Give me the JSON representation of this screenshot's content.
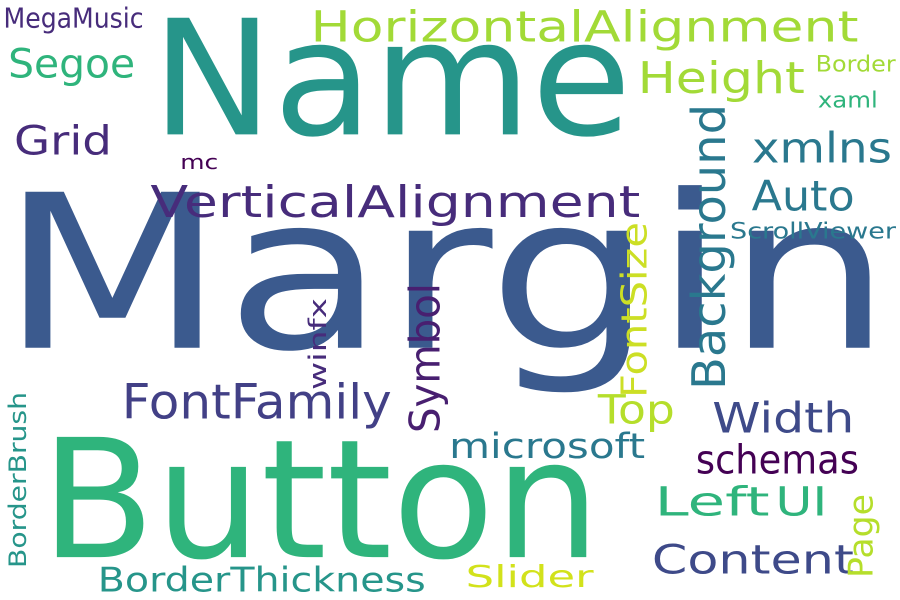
{
  "words": [
    {
      "text": "Margin",
      "color": "#3b5a8e",
      "rotate": false
    },
    {
      "text": "Name",
      "color": "#26958a",
      "rotate": false
    },
    {
      "text": "Button",
      "color": "#2fb47c",
      "rotate": false
    },
    {
      "text": "HorizontalAlignment",
      "color": "#a2da37",
      "rotate": false
    },
    {
      "text": "VerticalAlignment",
      "color": "#472c7b",
      "rotate": false
    },
    {
      "text": "FontFamily",
      "color": "#424086",
      "rotate": false
    },
    {
      "text": "Height",
      "color": "#a2da37",
      "rotate": false
    },
    {
      "text": "Background",
      "color": "#2a788e",
      "rotate": true
    },
    {
      "text": "Segoe",
      "color": "#2fb47c",
      "rotate": false
    },
    {
      "text": "Grid",
      "color": "#472c7b",
      "rotate": false
    },
    {
      "text": "xmlns",
      "color": "#2a788e",
      "rotate": false
    },
    {
      "text": "Auto",
      "color": "#2a788e",
      "rotate": false
    },
    {
      "text": "Symbol",
      "color": "#481f70",
      "rotate": true
    },
    {
      "text": "FontSize",
      "color": "#ccdf25",
      "rotate": true
    },
    {
      "text": "Top",
      "color": "#b5de2b",
      "rotate": false
    },
    {
      "text": "Width",
      "color": "#3e4a89",
      "rotate": false
    },
    {
      "text": "schemas",
      "color": "#440154",
      "rotate": false
    },
    {
      "text": "microsoft",
      "color": "#2a788e",
      "rotate": false
    },
    {
      "text": "Left",
      "color": "#2fb47c",
      "rotate": false
    },
    {
      "text": "UI",
      "color": "#2fb47c",
      "rotate": false
    },
    {
      "text": "Content",
      "color": "#3e4a89",
      "rotate": false
    },
    {
      "text": "BorderThickness",
      "color": "#26958a",
      "rotate": false
    },
    {
      "text": "Slider",
      "color": "#d2e21b",
      "rotate": false
    },
    {
      "text": "Page",
      "color": "#b5de2b",
      "rotate": true
    },
    {
      "text": "BorderBrush",
      "color": "#26958a",
      "rotate": true
    },
    {
      "text": "winfx",
      "color": "#472c7b",
      "rotate": true
    },
    {
      "text": "MegaMusic",
      "color": "#472c7b",
      "rotate": false
    },
    {
      "text": "mc",
      "color": "#440154",
      "rotate": false
    },
    {
      "text": "Border",
      "color": "#a2da37",
      "rotate": false
    },
    {
      "text": "xaml",
      "color": "#2fb47c",
      "rotate": false
    },
    {
      "text": "ScrollViewer",
      "color": "#2a788e",
      "rotate": false
    }
  ]
}
